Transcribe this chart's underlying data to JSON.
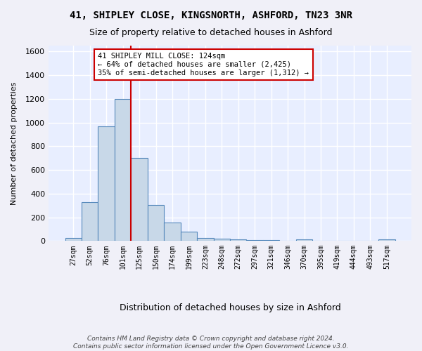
{
  "title": "41, SHIPLEY CLOSE, KINGSNORTH, ASHFORD, TN23 3NR",
  "subtitle": "Size of property relative to detached houses in Ashford",
  "xlabel": "Distribution of detached houses by size in Ashford",
  "ylabel": "Number of detached properties",
  "bar_color": "#c8d8e8",
  "bar_edge_color": "#5588bb",
  "background_color": "#e8eeff",
  "grid_color": "#ffffff",
  "bin_labels": [
    "27sqm",
    "52sqm",
    "76sqm",
    "101sqm",
    "125sqm",
    "150sqm",
    "174sqm",
    "199sqm",
    "223sqm",
    "248sqm",
    "272sqm",
    "297sqm",
    "321sqm",
    "346sqm",
    "370sqm",
    "395sqm",
    "419sqm",
    "444sqm",
    "493sqm",
    "517sqm"
  ],
  "values": [
    25,
    325,
    970,
    1200,
    700,
    305,
    155,
    80,
    25,
    18,
    12,
    10,
    10,
    0,
    12,
    0,
    0,
    0,
    0,
    12
  ],
  "ylim": [
    0,
    1650
  ],
  "yticks": [
    0,
    200,
    400,
    600,
    800,
    1000,
    1200,
    1400,
    1600
  ],
  "property_line_color": "#cc0000",
  "annotation_text": "41 SHIPLEY MILL CLOSE: 124sqm\n← 64% of detached houses are smaller (2,425)\n35% of semi-detached houses are larger (1,312) →",
  "annotation_box_color": "#ffffff",
  "annotation_box_edge": "#cc0000",
  "footer": "Contains HM Land Registry data © Crown copyright and database right 2024.\nContains public sector information licensed under the Open Government Licence v3.0.",
  "fig_width": 6.0,
  "fig_height": 5.0
}
